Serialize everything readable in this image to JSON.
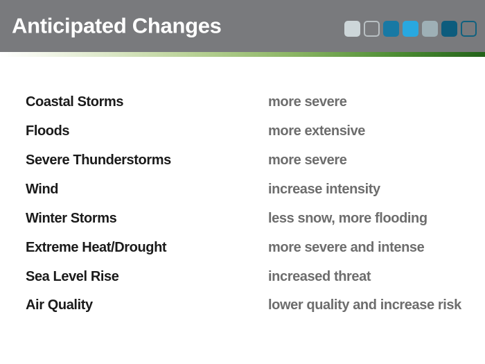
{
  "header": {
    "title": "Anticipated Changes",
    "background_color": "#797a7d",
    "title_color": "#ffffff"
  },
  "palette": {
    "squares": [
      {
        "name": "light-gray-filled-swatch",
        "fill": "#cdd6d9",
        "border": "none"
      },
      {
        "name": "gray-outlined-swatch",
        "fill": "transparent",
        "border": "#b9c0c3"
      },
      {
        "name": "teal-blue-filled-swatch",
        "fill": "#1879a4",
        "border": "none"
      },
      {
        "name": "bright-blue-filled-swatch",
        "fill": "#29a8e0",
        "border": "none"
      },
      {
        "name": "gray-blue-filled-swatch",
        "fill": "#9eb0b6",
        "border": "none"
      },
      {
        "name": "dark-teal-filled-swatch",
        "fill": "#0d5c7d",
        "border": "none"
      },
      {
        "name": "dark-teal-outlined-swatch",
        "fill": "transparent",
        "border": "#0f617f"
      }
    ]
  },
  "accent_line": {
    "gradient_left_color": "#ffffff",
    "gradient_mid_color": "#8cb665",
    "gradient_right_color": "#23621a"
  },
  "rows": [
    {
      "hazard": "Coastal Storms",
      "change": "more severe"
    },
    {
      "hazard": "Floods",
      "change": "more extensive"
    },
    {
      "hazard": "Severe Thunderstorms",
      "change": "more severe"
    },
    {
      "hazard": "Wind",
      "change": "increase intensity"
    },
    {
      "hazard": "Winter Storms",
      "change": "less snow, more flooding"
    },
    {
      "hazard": "Extreme Heat/Drought",
      "change": "more severe and intense"
    },
    {
      "hazard": "Sea Level Rise",
      "change": "increased threat"
    },
    {
      "hazard": "Air Quality",
      "change": "lower quality and increase risk"
    }
  ],
  "text_colors": {
    "hazard_text": "#1a1a1a",
    "change_text": "#6d6d6d"
  }
}
